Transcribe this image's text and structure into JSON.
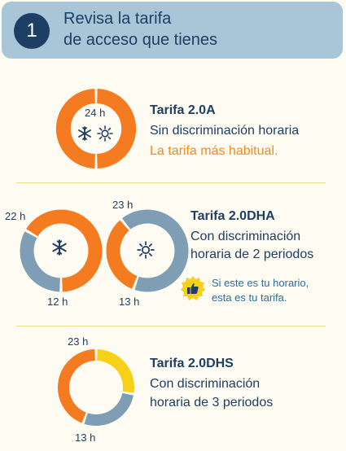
{
  "header": {
    "step_number": "1",
    "title_line1": "Revisa la tarifa",
    "title_line2": "de acceso que tienes"
  },
  "colors": {
    "orange": "#f47b20",
    "blue_gray": "#7f9db4",
    "yellow": "#f7d117",
    "navy": "#1f3e63",
    "header_bg": "#a9c6d9"
  },
  "tariff_20a": {
    "ring_label": "24 h",
    "icons": [
      "snowflake-icon",
      "sun-icon"
    ],
    "name": "Tarifa 2.0A",
    "description": "Sin discriminación horaria",
    "highlight": "La tarifa más habitual."
  },
  "tariff_20dha": {
    "name": "Tarifa 2.0DHA",
    "description_line1": "Con discriminación",
    "description_line2": "horaria de 2 periodos",
    "ring_winter": {
      "label_start": "22 h",
      "label_end": "12 h",
      "icon": "snowflake-icon"
    },
    "ring_summer": {
      "label_start": "23 h",
      "label_end": "13 h",
      "icon": "sun-icon"
    },
    "note_icon": "thumbs-up-icon",
    "note_line1": "Si este es tu horario,",
    "note_line2": "esta es tu tarifa."
  },
  "tariff_20dhs": {
    "name": "Tarifa 2.0DHS",
    "description_line1": "Con discriminación",
    "description_line2": "horaria de 3 periodos",
    "label_start": "23 h",
    "label_end": "13 h"
  }
}
